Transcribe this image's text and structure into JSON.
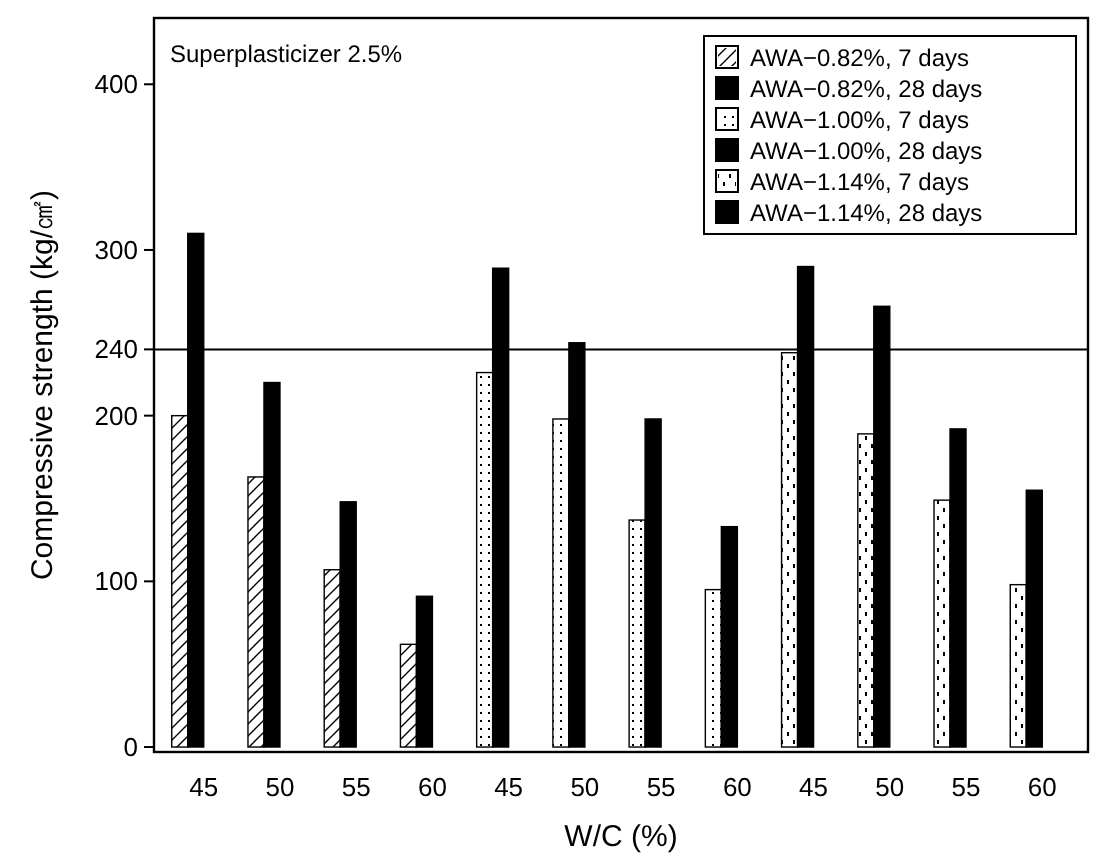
{
  "chart_data": {
    "type": "bar",
    "xlabel": "W/C (%)",
    "ylabel": "Compressive strength (kg/㎠)",
    "categories": [
      "45",
      "50",
      "55",
      "60",
      "45",
      "50",
      "55",
      "60",
      "45",
      "50",
      "55",
      "60"
    ],
    "ylim": [
      -3,
      440
    ],
    "yticks": [
      0,
      100,
      200,
      240,
      300,
      400
    ],
    "legend": "top right",
    "grid": false,
    "annotations": [
      "Superplasticizer 2.5%"
    ],
    "ref_lines": [
      {
        "axis": "y",
        "value": 240,
        "color": "#000000"
      }
    ],
    "series": [
      {
        "name": "AWA−0.82%, 7 days",
        "color": "#ffffff",
        "values": [
          200,
          163,
          107,
          62,
          null,
          null,
          null,
          null,
          null,
          null,
          null,
          null
        ]
      },
      {
        "name": "AWA−0.82%, 28 days",
        "color": "#000000",
        "values": [
          310,
          220,
          148,
          91,
          null,
          null,
          null,
          null,
          null,
          null,
          null,
          null
        ]
      },
      {
        "name": "AWA−1.00%, 7 days",
        "color": "#ffffff",
        "values": [
          null,
          null,
          null,
          null,
          226,
          198,
          137,
          95,
          null,
          null,
          null,
          null
        ]
      },
      {
        "name": "AWA−1.00%, 28 days",
        "color": "#000000",
        "values": [
          null,
          null,
          null,
          null,
          289,
          244,
          198,
          133,
          null,
          null,
          null,
          null
        ]
      },
      {
        "name": "AWA−1.14%, 7 days",
        "color": "#ffffff",
        "values": [
          null,
          null,
          null,
          null,
          null,
          null,
          null,
          null,
          238,
          189,
          149,
          98
        ]
      },
      {
        "name": "AWA−1.14%, 28 days",
        "color": "#000000",
        "values": [
          null,
          null,
          null,
          null,
          null,
          null,
          null,
          null,
          290,
          266,
          192,
          155
        ]
      }
    ]
  }
}
